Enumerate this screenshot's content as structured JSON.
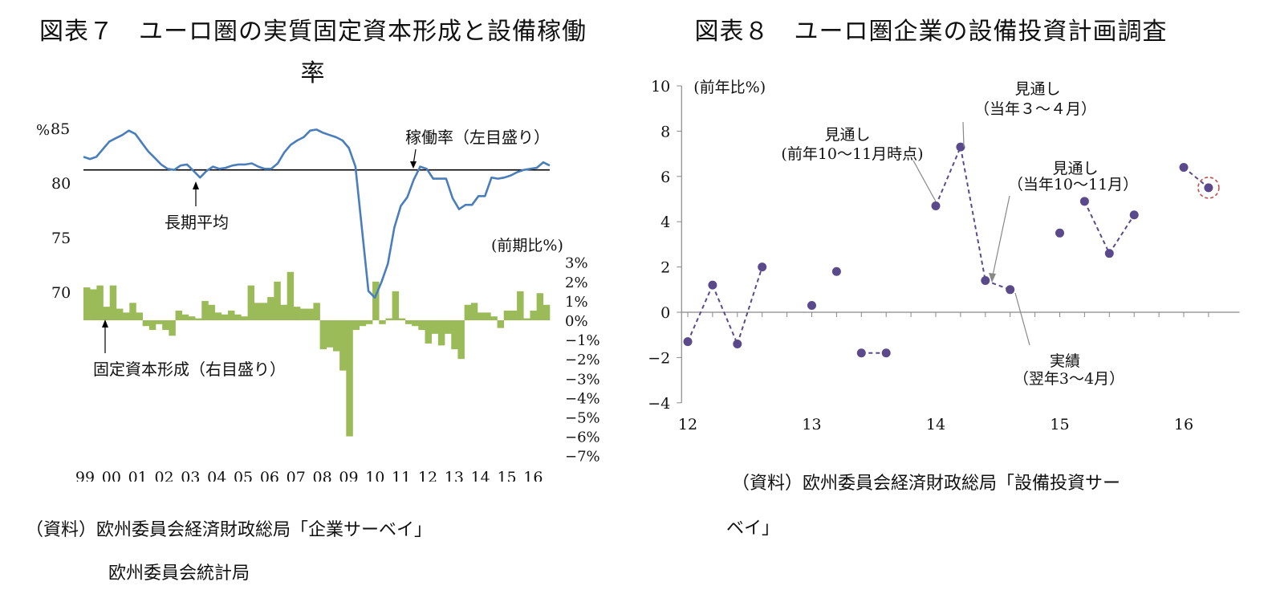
{
  "chart_data": [
    {
      "type": "line+bar",
      "title": "図表７　ユーロ圏の実質固定資本形成と設備稼働率",
      "left_axis": {
        "unit_label": "%",
        "ticks": [
          85,
          80,
          75,
          70
        ],
        "ylim": [
          60,
          85
        ]
      },
      "right_axis": {
        "unit_label": "(前期比%)",
        "ticks": [
          "3%",
          "2%",
          "1%",
          "0%",
          "−1%",
          "−2%",
          "−3%",
          "−4%",
          "−5%",
          "−6%",
          "−7%"
        ],
        "ylim": [
          -7,
          3
        ]
      },
      "x_tick_labels": [
        "99",
        "00",
        "01",
        "02",
        "03",
        "04",
        "05",
        "06",
        "07",
        "08",
        "09",
        "10",
        "11",
        "12",
        "13",
        "14",
        "15",
        "16"
      ],
      "series": [
        {
          "name": "稼働率（左目盛り）",
          "axis": "left",
          "color": "#4a7ebb",
          "values": [
            82.4,
            82.2,
            82.4,
            83.1,
            83.8,
            84.1,
            84.4,
            84.8,
            84.5,
            83.7,
            82.9,
            82.3,
            81.7,
            81.3,
            81.2,
            81.6,
            81.7,
            81.1,
            80.5,
            81.1,
            81.5,
            81.3,
            81.4,
            81.6,
            81.7,
            81.7,
            81.8,
            81.5,
            81.3,
            81.3,
            81.8,
            82.8,
            83.5,
            83.9,
            84.2,
            84.8,
            84.9,
            84.6,
            84.4,
            84.2,
            83.9,
            83.2,
            81.5,
            75.8,
            70.1,
            69.5,
            70.9,
            72.6,
            75.9,
            77.9,
            78.7,
            80.3,
            81.5,
            81.3,
            80.4,
            80.4,
            80.4,
            78.6,
            77.6,
            78.0,
            78.0,
            78.8,
            78.8,
            80.5,
            80.4,
            80.5,
            80.7,
            81.0,
            81.2,
            81.3,
            81.4,
            81.9,
            81.6
          ]
        },
        {
          "name": "固定資本形成（右目盛り）",
          "axis": "right",
          "color": "#9bbb59",
          "values": [
            1.7,
            1.6,
            1.8,
            0.7,
            1.8,
            0.6,
            0.4,
            0.9,
            0.4,
            -0.3,
            -0.5,
            -0.2,
            -0.5,
            -0.8,
            0.5,
            0.3,
            0.2,
            0.1,
            1.0,
            0.8,
            0.4,
            0.3,
            0.5,
            0.3,
            0.2,
            1.8,
            0.9,
            0.9,
            1.2,
            2.0,
            0.8,
            2.5,
            0.7,
            0.6,
            0.6,
            0.9,
            -1.5,
            -1.4,
            -1.6,
            -2.6,
            -6.0,
            -0.5,
            -0.3,
            -0.2,
            2.0,
            -0.2,
            0.1,
            1.5,
            0.1,
            -0.2,
            -0.3,
            -0.5,
            -1.2,
            -0.7,
            -1.3,
            -0.7,
            -1.5,
            -2.0,
            0.8,
            0.9,
            0.4,
            0.4,
            0.2,
            -0.4,
            0.5,
            0.5,
            1.5,
            0.1,
            0.5,
            1.4,
            0.8
          ]
        }
      ],
      "reference_line": {
        "label": "長期平均",
        "value": 81.2
      },
      "source_line1": "（資料）欧州委員会経済財政総局「企業サーベイ」",
      "source_line2": "欧州委員会統計局"
    },
    {
      "type": "scatter",
      "title": "図表８　ユーロ圏企業の設備投資計画調査",
      "y_unit_label": "(前年比%)",
      "yticks": [
        10,
        8,
        6,
        4,
        2,
        0,
        -2,
        -4
      ],
      "ylim": [
        -4,
        10
      ],
      "xticks": [
        12,
        13,
        14,
        15,
        16
      ],
      "xlim": [
        12,
        16.4
      ],
      "color": "#5b4a8b",
      "groups": [
        {
          "x": [
            12.0,
            12.2,
            12.4,
            12.6
          ],
          "y": [
            -1.3,
            1.2,
            -1.4,
            2.0
          ],
          "dashed": [
            [
              0,
              1
            ],
            [
              1,
              2
            ],
            [
              2,
              3
            ]
          ]
        },
        {
          "x": [
            13.0,
            13.2,
            13.4,
            13.6
          ],
          "y": [
            0.3,
            1.8,
            -1.8,
            -1.8
          ],
          "dashed": [
            [
              2,
              3
            ]
          ]
        },
        {
          "x": [
            14.0,
            14.2,
            14.4,
            14.6
          ],
          "y": [
            4.7,
            7.3,
            1.4,
            1.0
          ],
          "dashed": [
            [
              0,
              1
            ],
            [
              1,
              2
            ],
            [
              2,
              3
            ]
          ]
        },
        {
          "x": [
            15.0,
            15.2,
            15.4,
            15.6
          ],
          "y": [
            3.5,
            4.9,
            2.6,
            4.3
          ],
          "dashed": [
            [
              1,
              2
            ],
            [
              2,
              3
            ]
          ]
        },
        {
          "x": [
            16.0,
            16.2
          ],
          "y": [
            6.4,
            5.5
          ],
          "dashed": [
            [
              0,
              1
            ]
          ]
        }
      ],
      "highlighted_point": {
        "x": 16.2,
        "y": 5.5
      },
      "annotations": [
        {
          "key": "mitoshi_prev",
          "lines": [
            "見通し",
            "(前年10〜11月時点)"
          ]
        },
        {
          "key": "mitoshi_mar",
          "lines": [
            "見通し",
            "（当年３〜４月）"
          ]
        },
        {
          "key": "mitoshi_oct",
          "lines": [
            "見通し",
            "（当年10〜11月）"
          ]
        },
        {
          "key": "jisseki",
          "lines": [
            "実績",
            "（翌年3〜4月）"
          ]
        }
      ],
      "source_line1": "（資料）欧州委員会経済財政総局「設備投資サー",
      "source_line2": "ベイ」"
    }
  ]
}
